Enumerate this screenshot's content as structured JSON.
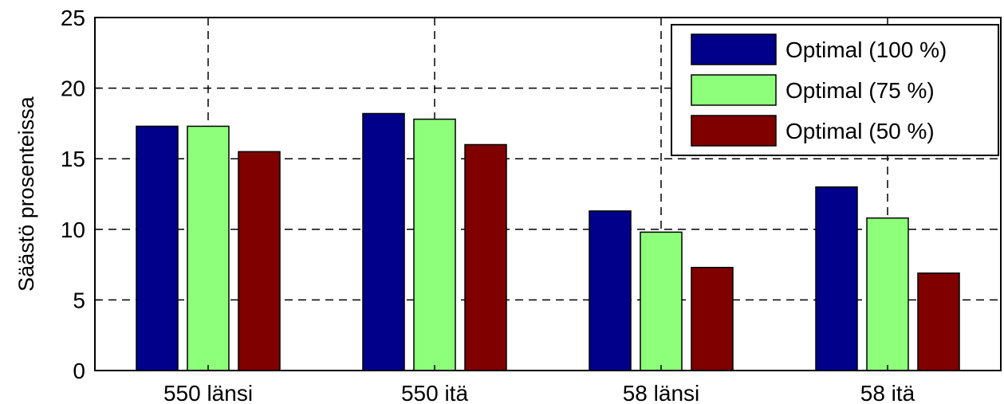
{
  "chart_data": {
    "type": "bar",
    "categories": [
      "550 länsi",
      "550 itä",
      "58 länsi",
      "58 itä"
    ],
    "series": [
      {
        "name": "Optimal (100 %)",
        "color": "#00008b",
        "values": [
          17.3,
          18.2,
          11.3,
          13.0
        ]
      },
      {
        "name": "Optimal (75 %)",
        "color": "#8eff7a",
        "values": [
          17.3,
          17.8,
          9.8,
          10.8
        ]
      },
      {
        "name": "Optimal (50 %)",
        "color": "#800000",
        "values": [
          15.5,
          16.0,
          7.3,
          6.9
        ]
      }
    ],
    "title": "",
    "xlabel": "",
    "ylabel": "Säästö prosenteissa",
    "ylim": [
      0,
      25
    ],
    "yticks": [
      "0",
      "5",
      "10",
      "15",
      "20",
      "25"
    ],
    "grid": true,
    "legend_position": "top-right"
  }
}
